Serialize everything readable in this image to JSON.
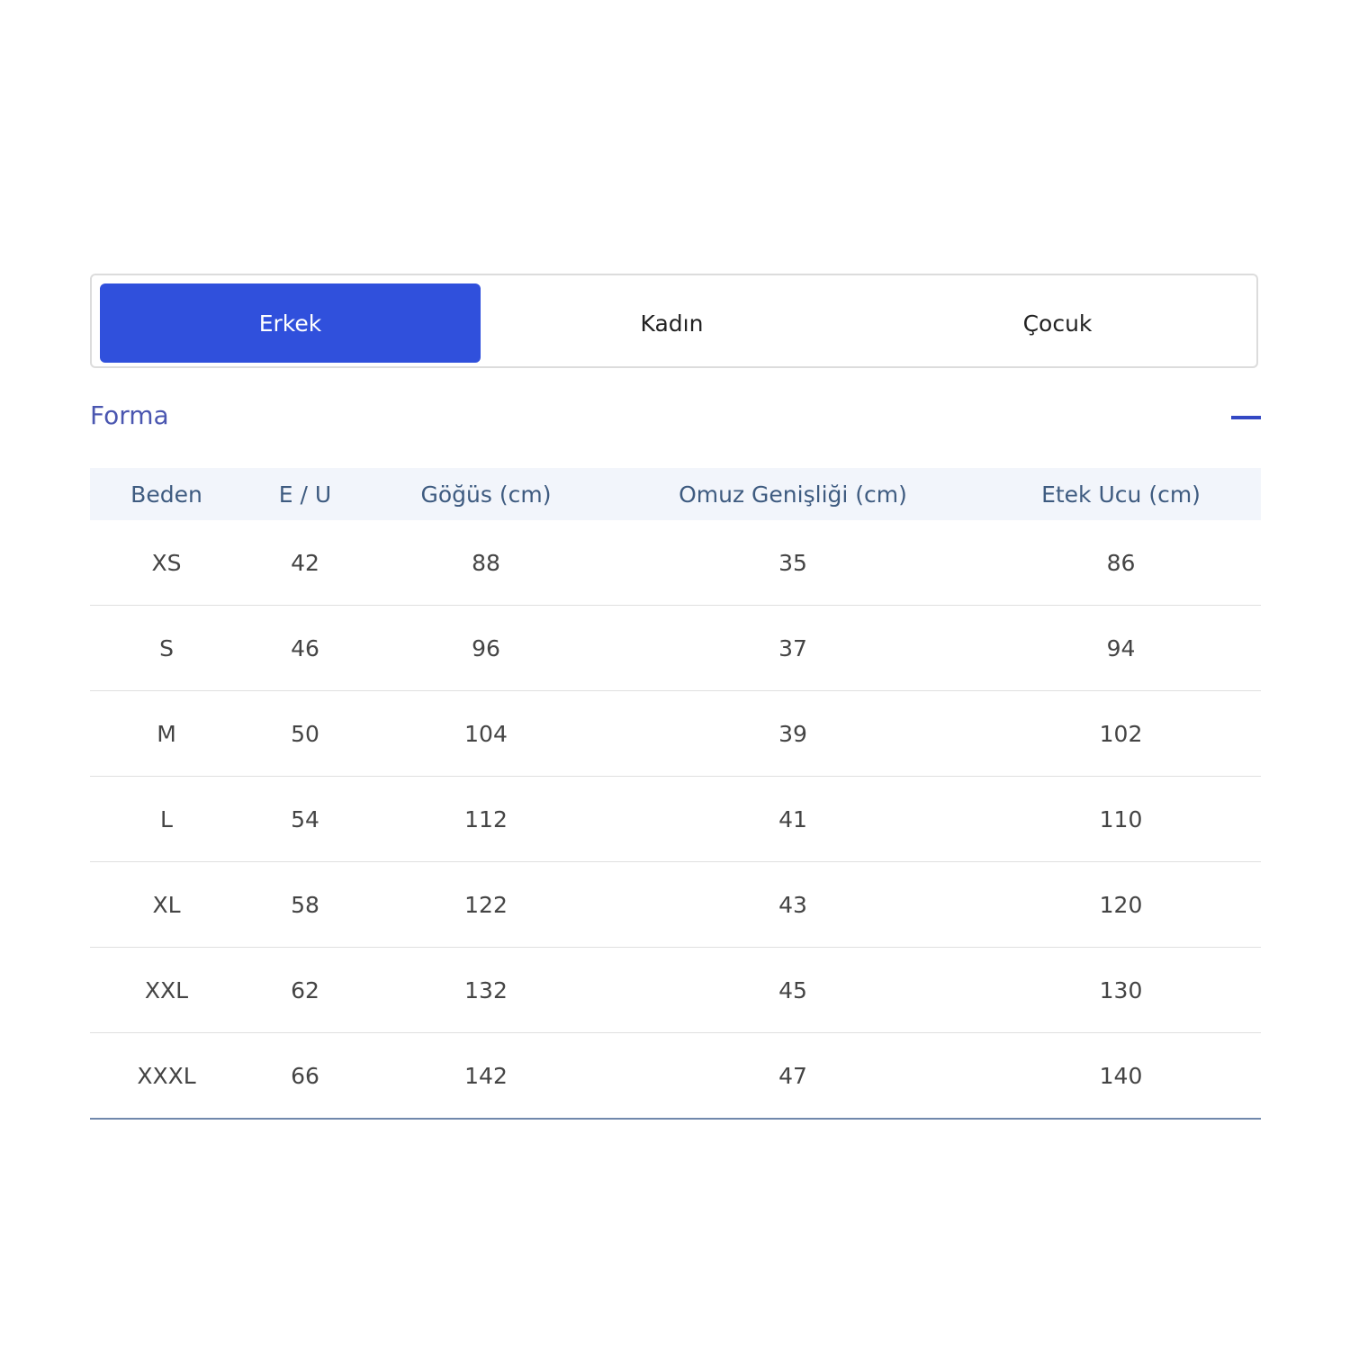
{
  "tabs": [
    {
      "label": "Erkek",
      "active": true
    },
    {
      "label": "Kadın",
      "active": false
    },
    {
      "label": "Çocuk",
      "active": false
    }
  ],
  "colors": {
    "accent": "#3050dc",
    "section_title": "#4a56b0",
    "header_bg": "#f2f5fb"
  },
  "section": {
    "title": "Forma",
    "collapse_icon": "minus-icon"
  },
  "table": {
    "headers": [
      "Beden",
      "E / U",
      "Göğüs (cm)",
      "Omuz Genişliği (cm)",
      "Etek Ucu (cm)"
    ],
    "rows": [
      [
        "XS",
        "42",
        "88",
        "35",
        "86"
      ],
      [
        "S",
        "46",
        "96",
        "37",
        "94"
      ],
      [
        "M",
        "50",
        "104",
        "39",
        "102"
      ],
      [
        "L",
        "54",
        "112",
        "41",
        "110"
      ],
      [
        "XL",
        "58",
        "122",
        "43",
        "120"
      ],
      [
        "XXL",
        "62",
        "132",
        "45",
        "130"
      ],
      [
        "XXXL",
        "66",
        "142",
        "47",
        "140"
      ]
    ]
  }
}
